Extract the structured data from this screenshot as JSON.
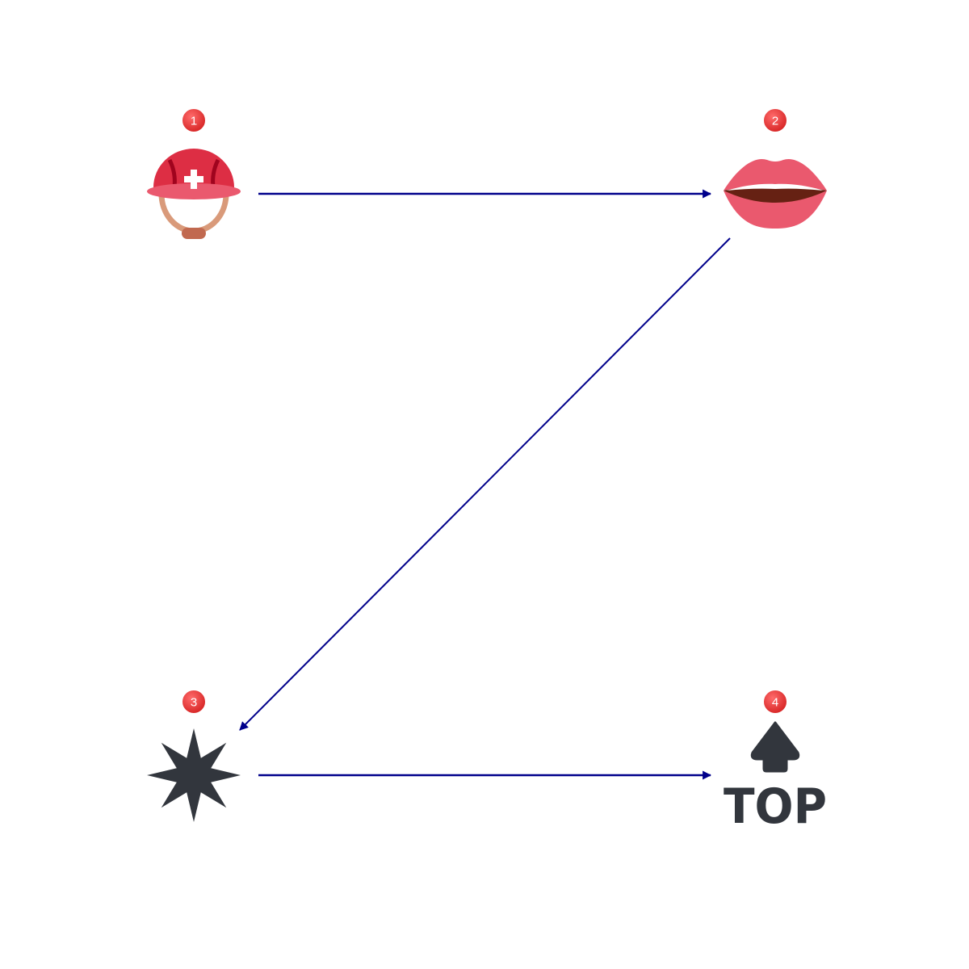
{
  "diagram": {
    "nodes": [
      {
        "badge": "1",
        "icon": "rescue-worker-helmet-icon"
      },
      {
        "badge": "2",
        "icon": "mouth-icon"
      },
      {
        "badge": "3",
        "icon": "eight-pointed-star-icon"
      },
      {
        "badge": "4",
        "icon": "top-arrow-icon",
        "label": "TOP"
      }
    ],
    "edges": [
      {
        "from": "1",
        "to": "2"
      },
      {
        "from": "2",
        "to": "3"
      },
      {
        "from": "3",
        "to": "4"
      }
    ],
    "colors": {
      "arrow": "#00008b",
      "badge": "#e83a3a",
      "helmet": "#dd2e44",
      "lips": "#ea596e",
      "dark_icon": "#32363d"
    }
  }
}
